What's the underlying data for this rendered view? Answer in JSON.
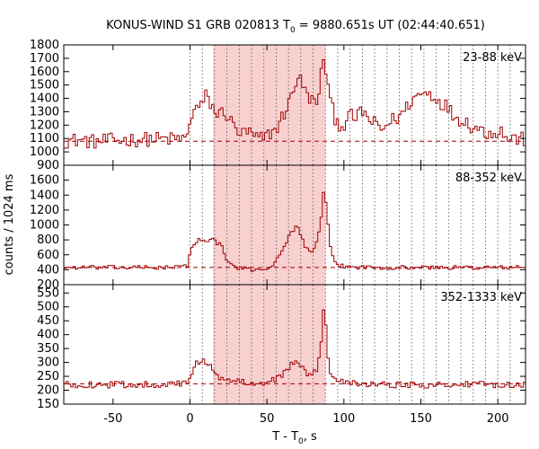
{
  "chart_data": {
    "type": "line",
    "title_main": "KONUS-WIND S1 GRB 020813 T",
    "title_sub": "0",
    "title_rest": " = 9880.651s UT (02:44:40.651)",
    "xlabel_main": "T - T",
    "xlabel_sub": "0",
    "xlabel_rest": ", s",
    "ylabel": "counts / 1024 ms",
    "xlim": [
      -82,
      218
    ],
    "xticks": [
      -50,
      0,
      50,
      100,
      150,
      200
    ],
    "shaded_interval": [
      15,
      88
    ],
    "dotted_lines": [
      0,
      8,
      16,
      24,
      32,
      40,
      48,
      56,
      64,
      72,
      80,
      88,
      96,
      104,
      112,
      120,
      128,
      136,
      144,
      152,
      160,
      168,
      176,
      184,
      192,
      200,
      208
    ],
    "colors": {
      "series": "#a00000",
      "shade": "#f8d0d0",
      "axes": "#000000"
    },
    "panels": [
      {
        "label": "23-88 keV",
        "ylim": [
          900,
          1800
        ],
        "yticks": [
          900,
          1000,
          1100,
          1200,
          1300,
          1400,
          1500,
          1600,
          1700,
          1800
        ],
        "background": 1080,
        "keypoints": [
          [
            -82,
            1080
          ],
          [
            -72,
            1090
          ],
          [
            -62,
            1075
          ],
          [
            -52,
            1085
          ],
          [
            -40,
            1090
          ],
          [
            -25,
            1095
          ],
          [
            -10,
            1095
          ],
          [
            -1,
            1105
          ],
          [
            0,
            1250
          ],
          [
            3,
            1330
          ],
          [
            7,
            1330
          ],
          [
            10,
            1420
          ],
          [
            14,
            1350
          ],
          [
            18,
            1270
          ],
          [
            22,
            1310
          ],
          [
            28,
            1200
          ],
          [
            33,
            1130
          ],
          [
            38,
            1150
          ],
          [
            43,
            1100
          ],
          [
            48,
            1100
          ],
          [
            52,
            1140
          ],
          [
            56,
            1170
          ],
          [
            60,
            1260
          ],
          [
            64,
            1360
          ],
          [
            67,
            1450
          ],
          [
            70,
            1580
          ],
          [
            73,
            1500
          ],
          [
            76,
            1420
          ],
          [
            79,
            1400
          ],
          [
            82,
            1330
          ],
          [
            85,
            1560
          ],
          [
            87,
            1720
          ],
          [
            89,
            1550
          ],
          [
            91,
            1380
          ],
          [
            94,
            1260
          ],
          [
            97,
            1210
          ],
          [
            100,
            1200
          ],
          [
            104,
            1270
          ],
          [
            108,
            1250
          ],
          [
            112,
            1310
          ],
          [
            116,
            1240
          ],
          [
            120,
            1210
          ],
          [
            125,
            1160
          ],
          [
            128,
            1210
          ],
          [
            132,
            1240
          ],
          [
            136,
            1260
          ],
          [
            140,
            1320
          ],
          [
            144,
            1390
          ],
          [
            148,
            1420
          ],
          [
            151,
            1440
          ],
          [
            155,
            1440
          ],
          [
            158,
            1420
          ],
          [
            162,
            1380
          ],
          [
            166,
            1350
          ],
          [
            170,
            1290
          ],
          [
            174,
            1250
          ],
          [
            178,
            1240
          ],
          [
            182,
            1200
          ],
          [
            186,
            1180
          ],
          [
            190,
            1160
          ],
          [
            194,
            1140
          ],
          [
            198,
            1150
          ],
          [
            202,
            1160
          ],
          [
            206,
            1100
          ],
          [
            212,
            1100
          ],
          [
            218,
            1090
          ]
        ],
        "noise": 55
      },
      {
        "label": "88-352 keV",
        "ylim": [
          200,
          1800
        ],
        "yticks": [
          200,
          400,
          600,
          800,
          1000,
          1200,
          1400,
          1600
        ],
        "background": 430,
        "keypoints": [
          [
            -82,
            430
          ],
          [
            -60,
            430
          ],
          [
            -40,
            430
          ],
          [
            -20,
            430
          ],
          [
            -5,
            435
          ],
          [
            -1,
            470
          ],
          [
            0,
            650
          ],
          [
            3,
            750
          ],
          [
            6,
            800
          ],
          [
            9,
            820
          ],
          [
            12,
            780
          ],
          [
            15,
            800
          ],
          [
            18,
            760
          ],
          [
            21,
            700
          ],
          [
            24,
            520
          ],
          [
            28,
            450
          ],
          [
            32,
            420
          ],
          [
            36,
            410
          ],
          [
            40,
            400
          ],
          [
            45,
            410
          ],
          [
            50,
            420
          ],
          [
            55,
            480
          ],
          [
            58,
            580
          ],
          [
            61,
            700
          ],
          [
            64,
            850
          ],
          [
            67,
            920
          ],
          [
            70,
            1000
          ],
          [
            72,
            880
          ],
          [
            75,
            700
          ],
          [
            78,
            620
          ],
          [
            81,
            700
          ],
          [
            84,
            900
          ],
          [
            86,
            1200
          ],
          [
            87,
            1520
          ],
          [
            89,
            1150
          ],
          [
            91,
            700
          ],
          [
            94,
            500
          ],
          [
            98,
            450
          ],
          [
            105,
            440
          ],
          [
            120,
            430
          ],
          [
            140,
            430
          ],
          [
            160,
            430
          ],
          [
            180,
            430
          ],
          [
            200,
            430
          ],
          [
            218,
            430
          ]
        ],
        "noise": 28
      },
      {
        "label": "352-1333 keV",
        "ylim": [
          150,
          580
        ],
        "yticks": [
          150,
          200,
          250,
          300,
          350,
          400,
          450,
          500,
          550
        ],
        "background": 223,
        "keypoints": [
          [
            -82,
            220
          ],
          [
            -60,
            220
          ],
          [
            -40,
            220
          ],
          [
            -20,
            222
          ],
          [
            -2,
            222
          ],
          [
            0,
            250
          ],
          [
            3,
            290
          ],
          [
            6,
            300
          ],
          [
            9,
            305
          ],
          [
            12,
            300
          ],
          [
            15,
            280
          ],
          [
            18,
            250
          ],
          [
            22,
            235
          ],
          [
            30,
            230
          ],
          [
            40,
            230
          ],
          [
            50,
            225
          ],
          [
            55,
            240
          ],
          [
            60,
            255
          ],
          [
            64,
            275
          ],
          [
            67,
            300
          ],
          [
            70,
            310
          ],
          [
            73,
            280
          ],
          [
            76,
            260
          ],
          [
            79,
            250
          ],
          [
            82,
            270
          ],
          [
            84,
            320
          ],
          [
            86,
            400
          ],
          [
            87,
            520
          ],
          [
            88,
            470
          ],
          [
            89,
            350
          ],
          [
            91,
            270
          ],
          [
            94,
            245
          ],
          [
            100,
            235
          ],
          [
            110,
            225
          ],
          [
            130,
            220
          ],
          [
            150,
            220
          ],
          [
            170,
            220
          ],
          [
            190,
            220
          ],
          [
            210,
            220
          ],
          [
            218,
            220
          ]
        ],
        "noise": 12
      }
    ]
  }
}
